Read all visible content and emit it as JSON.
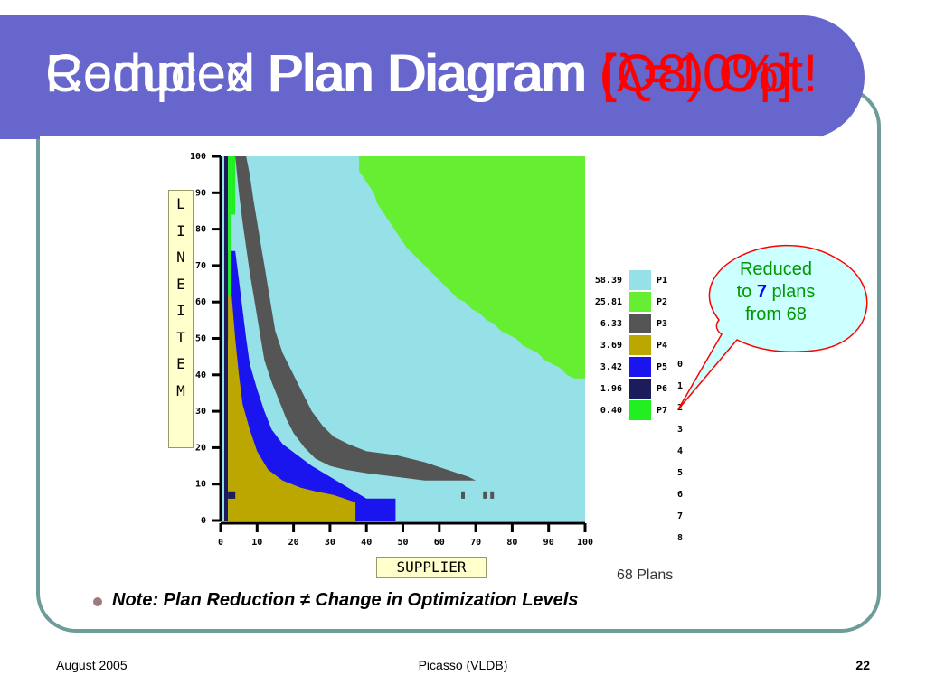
{
  "slide": {
    "title_layer_1": "Reduced Plan Diagram ",
    "title_layer_1_red": "[λ=10%]",
    "title_layer_2": "Complex Plan Diagram ",
    "title_layer_2_red": "(Q8) Opt!",
    "footer_left": "August 2005",
    "footer_center": "Picasso (VLDB)",
    "footer_right": "22",
    "note": "Note:  Plan Reduction ≠ Change in Optimization Levels",
    "callout": {
      "line1": "Reduced",
      "line2_pre": "to ",
      "line2_num": "7",
      "line2_post": " plans",
      "line3": "from 68"
    },
    "plans_caption": "68 Plans"
  },
  "chart_data": {
    "type": "heatmap",
    "xlabel": "SUPPLIER",
    "ylabel": "LINEITEM",
    "xlim": [
      0,
      100
    ],
    "ylim": [
      0,
      100
    ],
    "xticks": [
      "0",
      "10",
      "20",
      "30",
      "40",
      "50",
      "60",
      "70",
      "80",
      "90",
      "100"
    ],
    "yticks": [
      "0",
      "10",
      "20",
      "30",
      "40",
      "50",
      "60",
      "70",
      "80",
      "90",
      "100"
    ],
    "legend": [
      {
        "value": "58.39",
        "plan": "P1",
        "color": "#96e0e8"
      },
      {
        "value": "25.81",
        "plan": "P2",
        "color": "#66ee33"
      },
      {
        "value": "6.33",
        "plan": "P3",
        "color": "#555555"
      },
      {
        "value": "3.69",
        "plan": "P4",
        "color": "#bba700"
      },
      {
        "value": "3.42",
        "plan": "P5",
        "color": "#1a14ee"
      },
      {
        "value": "1.96",
        "plan": "P6",
        "color": "#1c1c5c"
      },
      {
        "value": "0.40",
        "plan": "P7",
        "color": "#22ee22"
      }
    ],
    "hidden_plan_indices": [
      "0",
      "1",
      "2",
      "3",
      "4",
      "5",
      "6",
      "7",
      "8"
    ]
  }
}
